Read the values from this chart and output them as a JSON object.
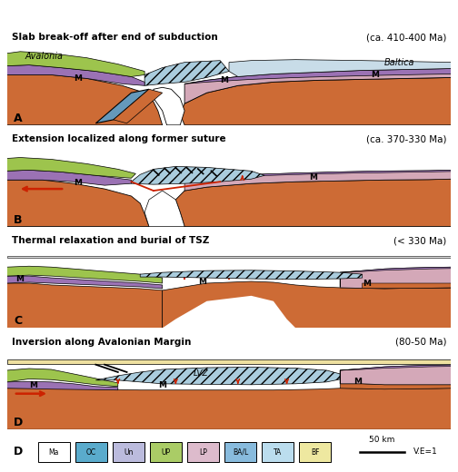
{
  "fig_width": 5.04,
  "fig_height": 5.2,
  "dpi": 100,
  "bg_color": "#FFFFFF",
  "panel_titles": [
    [
      "Slab break-off after end of subduction",
      "(ca. 410-400 Ma)"
    ],
    [
      "Extension localized along former suture",
      "(ca. 370-330 Ma)"
    ],
    [
      "Thermal relaxation and burial of TSZ",
      "(< 330 Ma)"
    ],
    [
      "Inversion along Avalonian Margin",
      "(80-50 Ma)"
    ]
  ],
  "panel_labels": [
    "A",
    "B",
    "C",
    "D"
  ],
  "colors": {
    "mantle": "#CD6B35",
    "avalonia_upper": "#9DC44D",
    "avalonia_lower": "#9B72B4",
    "baltica_pink": "#D4A8B8",
    "baltica_purple": "#9B72B4",
    "ocean_blue": "#6599BB",
    "hatch_blue": "#88BBDD",
    "hatch_bg": "#AACCDD",
    "sky_blue": "#C8DCE8",
    "sediment_yellow": "#EEE0A0",
    "white": "#FFFFFF",
    "red": "#CC2200",
    "black": "#000000"
  },
  "legend_colors": [
    "#FFFFFF",
    "#5AABCC",
    "#BBBBDD",
    "#AACC66",
    "#DDBBCC",
    "#88BBDD",
    "#BBDDEE",
    "#EEE8A0"
  ],
  "legend_labels": [
    "Ma",
    "OC",
    "Un",
    "UP",
    "LP",
    "BA/L",
    "TA",
    "BF"
  ],
  "scale_bar_text": "50 km",
  "ve_text": "V.E=1"
}
